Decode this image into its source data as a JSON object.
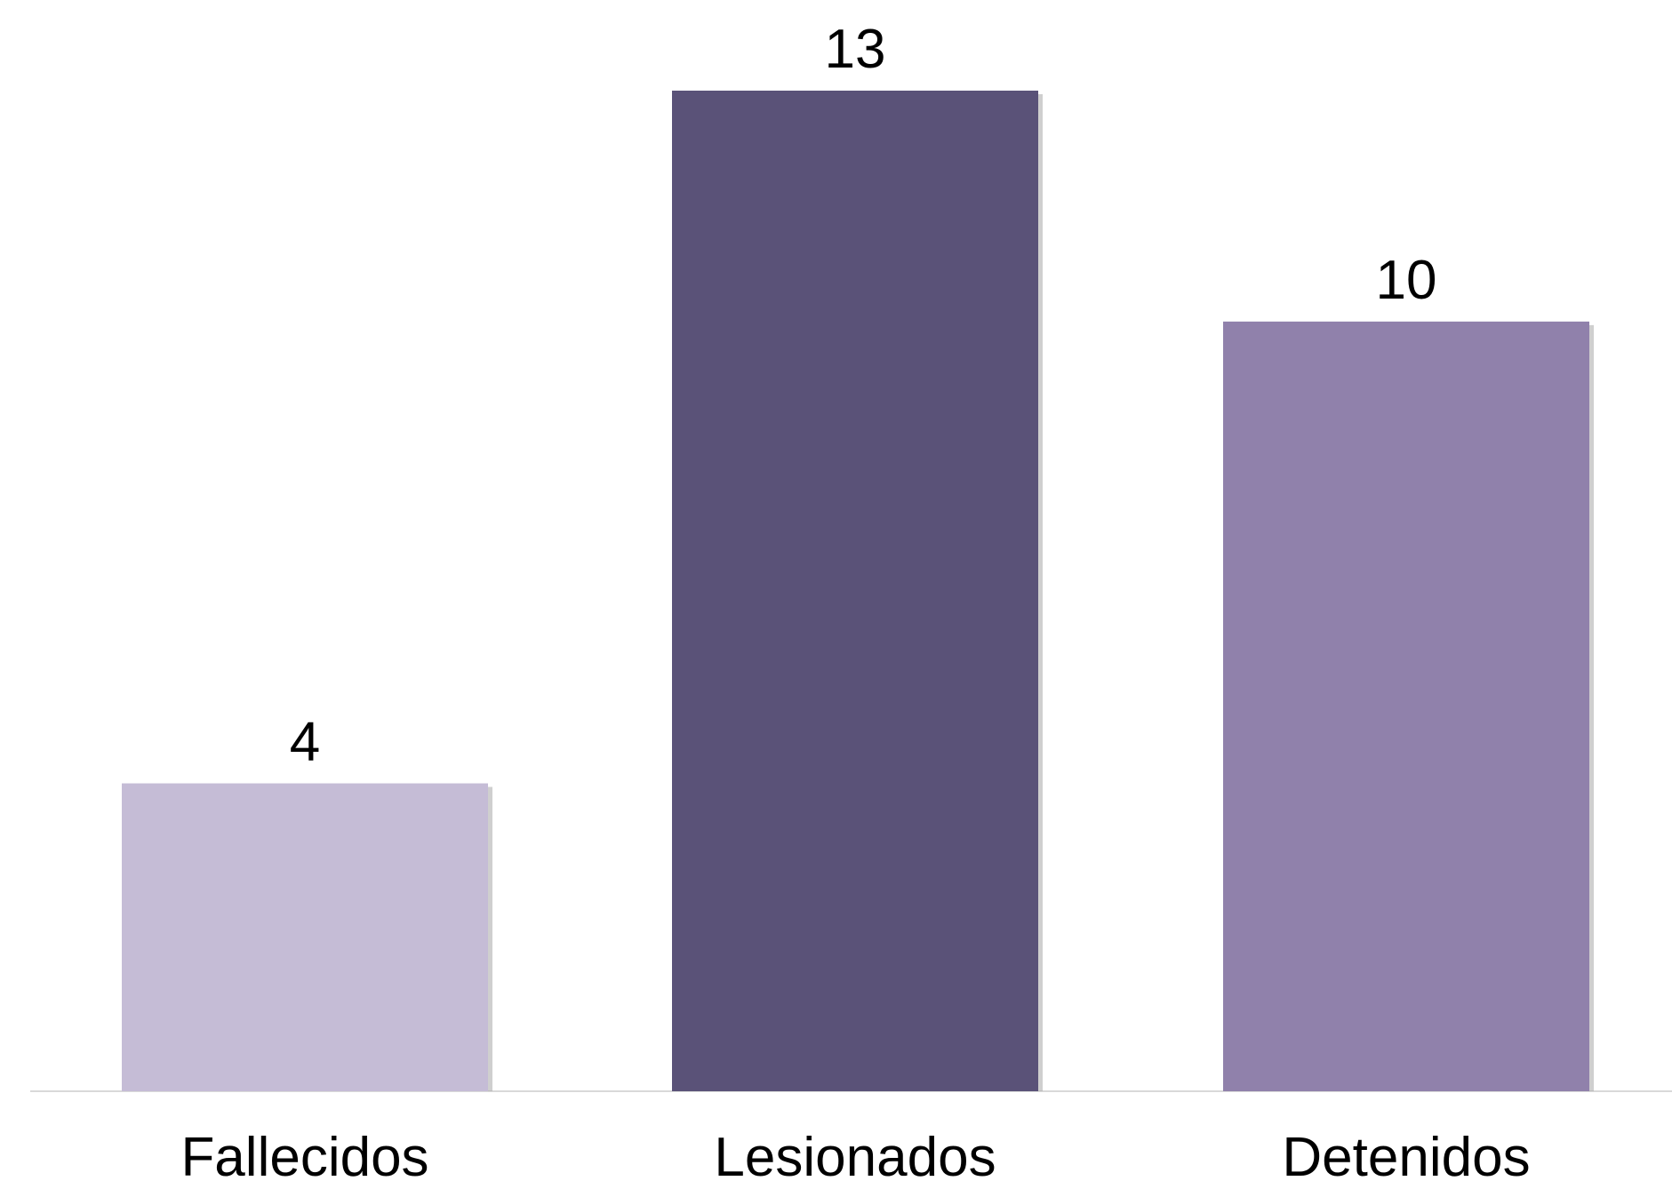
{
  "chart_data": {
    "type": "bar",
    "categories": [
      "Fallecidos",
      "Lesionados",
      "Detenidos"
    ],
    "values": [
      4,
      13,
      10
    ],
    "colors": [
      "#c5bcd6",
      "#5a5278",
      "#9081ab"
    ],
    "data_labels": [
      "4",
      "13",
      "10"
    ],
    "title": "",
    "xlabel": "",
    "ylabel": "",
    "ylim": [
      0,
      13
    ],
    "grid": false,
    "legend": "none"
  }
}
